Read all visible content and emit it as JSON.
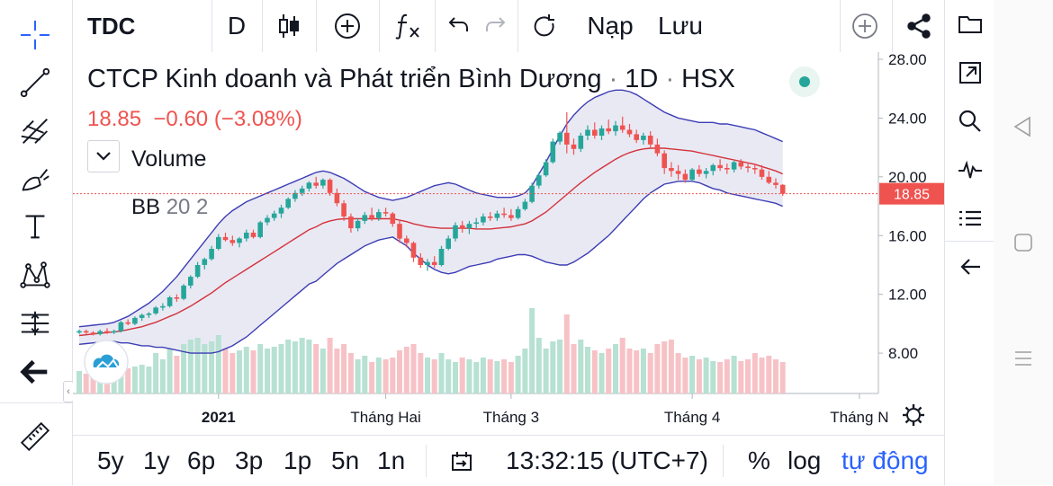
{
  "toolbar": {
    "symbol": "TDC",
    "interval": "D",
    "load_label": "Nạp",
    "save_label": "Lưu"
  },
  "legend": {
    "title": "CTCP Kinh doanh và Phát triển Bình Dương",
    "interval": "1D",
    "exchange": "HSX",
    "sep": "·",
    "last": "18.85",
    "change": "−0.60",
    "change_pct": "(−3.08%)",
    "volume_label": "Volume",
    "bb_label": "BB",
    "bb_params": "20 2"
  },
  "price_axis": {
    "ticks": [
      "28.00",
      "24.00",
      "20.00",
      "16.00",
      "12.00",
      "8.00"
    ],
    "last_price": "18.85"
  },
  "time_axis": {
    "labels": [
      "2021",
      "Tháng Hai",
      "Tháng 3",
      "Tháng 4",
      "Tháng N"
    ]
  },
  "bottom_bar": {
    "ranges": [
      "5y",
      "1y",
      "6p",
      "3p",
      "1p",
      "5n",
      "1n"
    ],
    "time": "13:32:15 (UTC+7)",
    "percent": "%",
    "log": "log",
    "auto": "tự động"
  },
  "colors": {
    "up": "#26a69a",
    "down": "#ef5350",
    "bb_band": "#3d3db5",
    "bb_basis": "#d3323a",
    "bb_fill": "#e9e9f4",
    "accent": "#2962ff",
    "price_label_bg": "#ef5350"
  },
  "chart_data": {
    "type": "candlestick",
    "symbol": "TDC",
    "price_range": [
      5.5,
      28.0
    ],
    "last_price": 18.85,
    "candles": [
      [
        9.4,
        9.6,
        9.3,
        9.5
      ],
      [
        9.5,
        9.6,
        9.3,
        9.4
      ],
      [
        9.4,
        9.5,
        9.2,
        9.3
      ],
      [
        9.3,
        9.6,
        9.2,
        9.5
      ],
      [
        9.5,
        9.7,
        9.3,
        9.4
      ],
      [
        9.4,
        9.6,
        9.3,
        9.5
      ],
      [
        9.5,
        10.2,
        9.4,
        10.1
      ],
      [
        10.1,
        10.3,
        9.9,
        10.0
      ],
      [
        10.0,
        10.5,
        9.9,
        10.4
      ],
      [
        10.4,
        10.7,
        10.2,
        10.6
      ],
      [
        10.6,
        10.8,
        10.4,
        10.7
      ],
      [
        10.7,
        11.2,
        10.6,
        11.1
      ],
      [
        11.1,
        11.4,
        10.9,
        11.2
      ],
      [
        11.2,
        11.9,
        11.1,
        11.8
      ],
      [
        11.8,
        12.0,
        11.5,
        11.7
      ],
      [
        11.7,
        12.7,
        11.6,
        12.6
      ],
      [
        12.6,
        13.3,
        12.4,
        13.2
      ],
      [
        13.2,
        14.2,
        13.1,
        14.0
      ],
      [
        14.0,
        14.5,
        13.7,
        14.4
      ],
      [
        14.4,
        15.3,
        14.3,
        15.1
      ],
      [
        15.1,
        16.1,
        15.0,
        15.9
      ],
      [
        15.9,
        16.2,
        15.6,
        15.7
      ],
      [
        15.7,
        16.0,
        15.3,
        15.5
      ],
      [
        15.5,
        15.9,
        15.2,
        15.8
      ],
      [
        15.8,
        16.4,
        15.6,
        16.2
      ],
      [
        16.2,
        16.4,
        15.8,
        15.9
      ],
      [
        15.9,
        17.0,
        15.8,
        16.9
      ],
      [
        16.9,
        17.4,
        16.7,
        17.2
      ],
      [
        17.2,
        17.7,
        17.0,
        17.5
      ],
      [
        17.5,
        18.1,
        17.2,
        17.9
      ],
      [
        17.9,
        18.6,
        17.8,
        18.5
      ],
      [
        18.5,
        19.1,
        18.3,
        18.9
      ],
      [
        18.9,
        19.4,
        18.7,
        19.2
      ],
      [
        19.2,
        19.7,
        19.0,
        19.6
      ],
      [
        19.6,
        20.0,
        19.2,
        19.4
      ],
      [
        19.4,
        19.9,
        19.2,
        19.8
      ],
      [
        19.8,
        19.9,
        18.7,
        18.9
      ],
      [
        18.9,
        19.2,
        18.0,
        18.2
      ],
      [
        18.2,
        18.4,
        17.0,
        17.3
      ],
      [
        17.3,
        17.5,
        16.2,
        16.5
      ],
      [
        16.5,
        17.2,
        16.3,
        17.0
      ],
      [
        17.0,
        17.6,
        16.8,
        17.4
      ],
      [
        17.4,
        17.9,
        17.0,
        17.2
      ],
      [
        17.2,
        17.8,
        17.0,
        17.6
      ],
      [
        17.6,
        17.9,
        17.3,
        17.5
      ],
      [
        17.5,
        17.6,
        16.6,
        16.8
      ],
      [
        16.8,
        17.0,
        15.5,
        15.8
      ],
      [
        15.8,
        16.0,
        15.2,
        15.5
      ],
      [
        15.5,
        15.6,
        14.2,
        14.5
      ],
      [
        14.5,
        14.8,
        13.8,
        14.0
      ],
      [
        14.0,
        14.4,
        13.6,
        14.2
      ],
      [
        14.2,
        14.6,
        13.8,
        14.0
      ],
      [
        14.0,
        15.3,
        13.9,
        15.1
      ],
      [
        15.1,
        16.0,
        15.0,
        15.8
      ],
      [
        15.8,
        16.9,
        15.6,
        16.7
      ],
      [
        16.7,
        17.0,
        16.2,
        16.5
      ],
      [
        16.5,
        17.0,
        16.1,
        16.8
      ],
      [
        16.8,
        17.2,
        16.5,
        16.9
      ],
      [
        16.9,
        17.5,
        16.7,
        17.3
      ],
      [
        17.3,
        17.6,
        17.0,
        17.2
      ],
      [
        17.2,
        17.7,
        17.0,
        17.5
      ],
      [
        17.5,
        17.9,
        17.2,
        17.4
      ],
      [
        17.4,
        17.8,
        17.0,
        17.2
      ],
      [
        17.2,
        18.0,
        17.1,
        17.8
      ],
      [
        17.8,
        18.5,
        17.7,
        18.3
      ],
      [
        18.3,
        19.6,
        18.2,
        19.4
      ],
      [
        19.4,
        20.3,
        19.2,
        20.1
      ],
      [
        20.1,
        21.2,
        20.0,
        21.0
      ],
      [
        21.0,
        22.6,
        20.9,
        22.4
      ],
      [
        22.4,
        23.1,
        22.2,
        23.0
      ],
      [
        23.0,
        24.4,
        21.6,
        22.2
      ],
      [
        22.2,
        22.6,
        21.5,
        21.9
      ],
      [
        21.9,
        23.0,
        21.7,
        22.8
      ],
      [
        22.8,
        23.5,
        22.5,
        23.2
      ],
      [
        23.2,
        23.7,
        22.6,
        22.8
      ],
      [
        22.8,
        23.5,
        22.5,
        23.3
      ],
      [
        23.3,
        23.9,
        22.9,
        23.1
      ],
      [
        23.1,
        23.8,
        22.8,
        23.5
      ],
      [
        23.5,
        24.1,
        23.0,
        23.2
      ],
      [
        23.2,
        23.6,
        22.7,
        22.9
      ],
      [
        22.9,
        23.2,
        22.3,
        22.5
      ],
      [
        22.5,
        23.0,
        22.2,
        22.8
      ],
      [
        22.8,
        23.1,
        22.0,
        22.2
      ],
      [
        22.2,
        22.6,
        21.4,
        21.6
      ],
      [
        21.6,
        21.8,
        20.2,
        20.6
      ],
      [
        20.6,
        21.0,
        20.0,
        20.4
      ],
      [
        20.4,
        20.8,
        19.8,
        20.2
      ],
      [
        20.2,
        20.5,
        19.6,
        19.8
      ],
      [
        19.8,
        20.6,
        19.7,
        20.5
      ],
      [
        20.5,
        20.8,
        20.0,
        20.2
      ],
      [
        20.2,
        20.6,
        19.9,
        20.4
      ],
      [
        20.4,
        20.9,
        20.1,
        20.8
      ],
      [
        20.8,
        21.2,
        20.4,
        20.6
      ],
      [
        20.6,
        20.9,
        20.2,
        20.5
      ],
      [
        20.5,
        21.1,
        20.3,
        21.0
      ],
      [
        21.0,
        21.2,
        20.5,
        20.7
      ],
      [
        20.7,
        21.0,
        20.3,
        20.6
      ],
      [
        20.6,
        20.9,
        20.2,
        20.5
      ],
      [
        20.5,
        20.8,
        19.8,
        20.0
      ],
      [
        20.0,
        20.4,
        19.5,
        19.6
      ],
      [
        19.6,
        19.9,
        19.2,
        19.45
      ],
      [
        19.45,
        19.5,
        18.7,
        18.85
      ]
    ],
    "volume": [
      0.25,
      0.22,
      0.18,
      0.2,
      0.22,
      0.2,
      0.35,
      0.28,
      0.3,
      0.32,
      0.3,
      0.45,
      0.38,
      0.5,
      0.42,
      0.55,
      0.6,
      0.62,
      0.55,
      0.58,
      0.65,
      0.5,
      0.45,
      0.48,
      0.52,
      0.48,
      0.55,
      0.5,
      0.52,
      0.55,
      0.6,
      0.58,
      0.62,
      0.6,
      0.55,
      0.5,
      0.62,
      0.5,
      0.55,
      0.45,
      0.38,
      0.42,
      0.35,
      0.4,
      0.38,
      0.4,
      0.48,
      0.52,
      0.55,
      0.45,
      0.4,
      0.38,
      0.45,
      0.38,
      0.35,
      0.4,
      0.38,
      0.35,
      0.4,
      0.38,
      0.36,
      0.38,
      0.35,
      0.42,
      0.5,
      0.95,
      0.62,
      0.5,
      0.58,
      0.6,
      0.88,
      0.55,
      0.6,
      0.52,
      0.48,
      0.45,
      0.5,
      0.55,
      0.62,
      0.5,
      0.48,
      0.5,
      0.45,
      0.55,
      0.58,
      0.6,
      0.45,
      0.4,
      0.42,
      0.38,
      0.4,
      0.36,
      0.35,
      0.38,
      0.42,
      0.36,
      0.38,
      0.45,
      0.4,
      0.42,
      0.38,
      0.35
    ],
    "bb_upper": [
      9.8,
      9.85,
      9.9,
      9.95,
      10.0,
      10.1,
      10.3,
      10.5,
      10.8,
      11.1,
      11.4,
      11.8,
      12.2,
      12.7,
      13.2,
      13.8,
      14.4,
      15.0,
      15.6,
      16.2,
      16.8,
      17.3,
      17.7,
      18.0,
      18.3,
      18.5,
      18.7,
      18.9,
      19.1,
      19.3,
      19.5,
      19.7,
      19.9,
      20.1,
      20.3,
      20.4,
      20.3,
      20.1,
      19.9,
      19.6,
      19.3,
      19.0,
      18.8,
      18.6,
      18.5,
      18.4,
      18.5,
      18.6,
      18.8,
      19.0,
      19.2,
      19.4,
      19.5,
      19.6,
      19.5,
      19.3,
      19.1,
      18.9,
      18.8,
      18.7,
      18.6,
      18.6,
      18.6,
      18.7,
      18.9,
      19.4,
      20.2,
      21.0,
      21.9,
      22.8,
      23.6,
      24.2,
      24.7,
      25.1,
      25.4,
      25.6,
      25.8,
      25.9,
      25.9,
      25.8,
      25.6,
      25.3,
      25.0,
      24.7,
      24.4,
      24.2,
      24.0,
      23.9,
      23.8,
      23.7,
      23.7,
      23.7,
      23.6,
      23.6,
      23.5,
      23.4,
      23.3,
      23.2,
      23.0,
      22.8,
      22.6,
      22.4
    ],
    "bb_basis": [
      9.2,
      9.25,
      9.3,
      9.35,
      9.4,
      9.45,
      9.5,
      9.6,
      9.7,
      9.8,
      9.95,
      10.1,
      10.3,
      10.5,
      10.7,
      10.95,
      11.2,
      11.5,
      11.8,
      12.1,
      12.45,
      12.8,
      13.1,
      13.4,
      13.7,
      14.0,
      14.3,
      14.6,
      14.9,
      15.2,
      15.5,
      15.8,
      16.1,
      16.4,
      16.6,
      16.85,
      17.0,
      17.1,
      17.15,
      17.15,
      17.15,
      17.15,
      17.15,
      17.15,
      17.15,
      17.15,
      17.05,
      16.95,
      16.8,
      16.7,
      16.6,
      16.55,
      16.5,
      16.5,
      16.5,
      16.5,
      16.5,
      16.45,
      16.45,
      16.45,
      16.5,
      16.55,
      16.6,
      16.7,
      16.8,
      17.0,
      17.3,
      17.6,
      18.0,
      18.4,
      18.8,
      19.2,
      19.6,
      19.95,
      20.3,
      20.6,
      20.9,
      21.2,
      21.45,
      21.65,
      21.8,
      21.9,
      21.95,
      21.95,
      21.95,
      21.9,
      21.85,
      21.8,
      21.75,
      21.65,
      21.55,
      21.45,
      21.35,
      21.25,
      21.15,
      21.05,
      20.95,
      20.85,
      20.7,
      20.55,
      20.4,
      20.2
    ],
    "bb_lower": [
      8.6,
      8.65,
      8.7,
      8.75,
      8.8,
      8.8,
      8.7,
      8.7,
      8.6,
      8.5,
      8.5,
      8.4,
      8.4,
      8.3,
      8.2,
      8.1,
      8.0,
      8.0,
      8.0,
      8.0,
      8.1,
      8.3,
      8.5,
      8.8,
      9.1,
      9.5,
      9.9,
      10.3,
      10.7,
      11.1,
      11.5,
      11.9,
      12.3,
      12.7,
      12.9,
      13.3,
      13.7,
      14.1,
      14.4,
      14.7,
      15.0,
      15.3,
      15.5,
      15.7,
      15.8,
      15.9,
      15.6,
      15.3,
      14.8,
      14.4,
      14.0,
      13.7,
      13.5,
      13.4,
      13.5,
      13.7,
      13.9,
      14.0,
      14.1,
      14.2,
      14.4,
      14.5,
      14.6,
      14.7,
      14.7,
      14.6,
      14.4,
      14.2,
      14.1,
      14.0,
      14.0,
      14.2,
      14.5,
      14.8,
      15.2,
      15.6,
      16.0,
      16.5,
      17.0,
      17.5,
      18.0,
      18.5,
      18.9,
      19.2,
      19.5,
      19.6,
      19.7,
      19.7,
      19.7,
      19.6,
      19.4,
      19.2,
      19.1,
      18.9,
      18.8,
      18.7,
      18.6,
      18.5,
      18.4,
      18.3,
      18.2,
      18.0
    ]
  }
}
